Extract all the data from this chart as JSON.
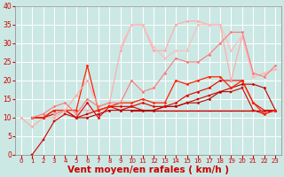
{
  "xlabel": "Vent moyen/en rafales ( km/h )",
  "bg_color": "#cce8e4",
  "grid_color": "#ffffff",
  "xlim": [
    -0.5,
    23.5
  ],
  "ylim": [
    0,
    40
  ],
  "yticks": [
    0,
    5,
    10,
    15,
    20,
    25,
    30,
    35,
    40
  ],
  "xticks": [
    0,
    1,
    2,
    3,
    4,
    5,
    6,
    7,
    8,
    9,
    10,
    11,
    12,
    13,
    14,
    15,
    16,
    17,
    18,
    19,
    20,
    21,
    22,
    23
  ],
  "series": [
    {
      "x": [
        0,
        1,
        2,
        3,
        4,
        5,
        6,
        7,
        8,
        9,
        10,
        11,
        12,
        13,
        14,
        15,
        16,
        17,
        18,
        19,
        20,
        21,
        22,
        23
      ],
      "y": [
        10,
        7.5,
        10,
        10,
        12,
        12,
        12,
        12,
        12,
        12,
        12,
        12,
        12,
        12,
        12,
        12,
        12,
        12,
        12,
        12,
        12,
        12,
        12,
        12
      ],
      "color": "#ffaaaa",
      "marker": "D",
      "markersize": 1.5,
      "linewidth": 0.8
    },
    {
      "x": [
        10,
        11,
        12,
        13,
        14,
        15,
        16,
        17,
        18,
        19,
        20,
        21,
        22,
        23
      ],
      "y": [
        12,
        12,
        12,
        12,
        12,
        12,
        12,
        12,
        12,
        12,
        12,
        12,
        12,
        12
      ],
      "color": "#aa0000",
      "marker": null,
      "markersize": 0,
      "linewidth": 0.8
    },
    {
      "x": [
        1,
        2,
        3,
        4,
        5,
        6,
        7,
        8,
        9,
        10,
        11,
        12,
        13,
        14,
        15,
        16,
        17,
        18,
        19,
        20,
        21,
        22,
        23
      ],
      "y": [
        0,
        4,
        9,
        11,
        10,
        11,
        12,
        13,
        12,
        13,
        12,
        12,
        13,
        13,
        14,
        15,
        16,
        17,
        17,
        18,
        12,
        11,
        12
      ],
      "color": "#cc0000",
      "marker": "s",
      "markersize": 1.5,
      "linewidth": 0.8
    },
    {
      "x": [
        1,
        2,
        3,
        4,
        5,
        6,
        7,
        8,
        9,
        10,
        11,
        12,
        13,
        14,
        15,
        16,
        17,
        18,
        19,
        20,
        21,
        22,
        23
      ],
      "y": [
        10,
        10,
        11,
        12,
        10,
        10,
        11,
        12,
        12,
        12,
        12,
        12,
        13,
        13,
        14,
        14,
        15,
        17,
        18,
        19,
        19,
        18,
        12
      ],
      "color": "#bb0000",
      "marker": "D",
      "markersize": 1.5,
      "linewidth": 0.8
    },
    {
      "x": [
        1,
        2,
        3,
        4,
        5,
        6,
        7,
        8,
        9,
        10,
        11,
        12,
        13,
        14,
        15,
        16,
        17,
        18,
        19,
        20,
        21,
        22,
        23
      ],
      "y": [
        10,
        10,
        12,
        12,
        10,
        14,
        10,
        13,
        13,
        13,
        14,
        13,
        13,
        14,
        16,
        17,
        18,
        20,
        20,
        20,
        14,
        12,
        12
      ],
      "color": "#dd0000",
      "marker": "D",
      "markersize": 1.5,
      "linewidth": 0.8
    },
    {
      "x": [
        1,
        2,
        3,
        4,
        5,
        6,
        7,
        8,
        9,
        10,
        11,
        12,
        13,
        14,
        15,
        16,
        17,
        18,
        19,
        20,
        21,
        22,
        23
      ],
      "y": [
        10,
        10,
        12,
        12,
        12,
        24,
        12,
        13,
        14,
        14,
        15,
        14,
        14,
        20,
        19,
        20,
        21,
        21,
        18,
        20,
        14,
        11,
        12
      ],
      "color": "#ff2200",
      "marker": "D",
      "markersize": 1.5,
      "linewidth": 0.9
    },
    {
      "x": [
        3,
        4,
        5,
        6,
        7,
        8,
        9,
        10,
        11,
        12,
        13,
        14,
        15,
        16,
        17,
        18,
        19,
        20,
        21,
        22,
        23
      ],
      "y": [
        11,
        12,
        16,
        20,
        13,
        14,
        28,
        35,
        35,
        28,
        28,
        35,
        36,
        36,
        35,
        35,
        20,
        32,
        21,
        22,
        23
      ],
      "color": "#ffaaaa",
      "marker": "D",
      "markersize": 1.5,
      "linewidth": 0.8
    },
    {
      "x": [
        9,
        10,
        11,
        12,
        13,
        14,
        15,
        16,
        17,
        18,
        19,
        20,
        21,
        22,
        23
      ],
      "y": [
        29,
        35,
        35,
        29,
        26,
        28,
        28,
        35,
        35,
        35,
        28,
        32,
        21,
        22,
        23
      ],
      "color": "#ffbbbb",
      "marker": "D",
      "markersize": 1.5,
      "linewidth": 0.8
    },
    {
      "x": [
        1,
        2,
        3,
        4,
        5,
        6,
        7,
        8,
        9,
        10,
        11,
        12,
        13,
        14,
        15,
        16,
        17,
        18,
        19,
        20,
        21,
        22,
        23
      ],
      "y": [
        10,
        11,
        13,
        14,
        11,
        15,
        13,
        14,
        14,
        20,
        17,
        18,
        22,
        26,
        25,
        25,
        27,
        30,
        33,
        33,
        22,
        21,
        24
      ],
      "color": "#ff7777",
      "marker": "D",
      "markersize": 1.5,
      "linewidth": 0.8
    }
  ],
  "axis_label_color": "#cc0000",
  "tick_color": "#cc0000",
  "xlabel_fontsize": 7.5,
  "tick_fontsize_x": 5,
  "tick_fontsize_y": 5.5
}
